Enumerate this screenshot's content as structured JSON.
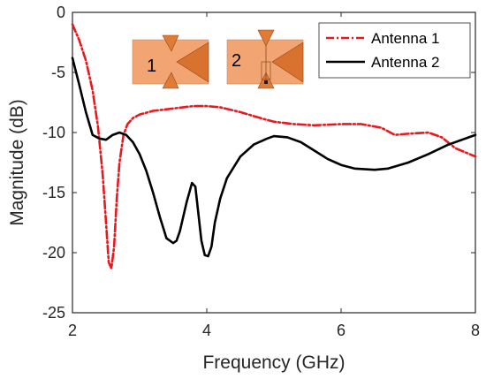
{
  "chart_data": {
    "type": "line",
    "title": "",
    "xlabel": "Frequency (GHz)",
    "ylabel": "Magnitude (dB)",
    "xlim": [
      2,
      8
    ],
    "ylim": [
      -25,
      0
    ],
    "xticks": [
      2,
      4,
      6,
      8
    ],
    "yticks": [
      0,
      -5,
      -10,
      -15,
      -20,
      -25
    ],
    "grid": false,
    "legend_position": "top-right",
    "series": [
      {
        "name": "Antenna 1",
        "color": "#e8191e",
        "style": "dash-dot",
        "x": [
          2.0,
          2.1,
          2.2,
          2.3,
          2.38,
          2.45,
          2.5,
          2.54,
          2.58,
          2.62,
          2.66,
          2.7,
          2.76,
          2.82,
          2.9,
          3.0,
          3.2,
          3.5,
          3.8,
          4.0,
          4.2,
          4.5,
          4.8,
          5.0,
          5.3,
          5.6,
          6.0,
          6.3,
          6.6,
          6.8,
          7.0,
          7.3,
          7.5,
          7.7,
          8.0
        ],
        "y": [
          -1.0,
          -2.3,
          -4.0,
          -6.5,
          -9.5,
          -13.5,
          -17.5,
          -20.8,
          -21.3,
          -19.5,
          -15.5,
          -12.5,
          -10.2,
          -9.3,
          -8.8,
          -8.5,
          -8.2,
          -8.0,
          -7.8,
          -7.8,
          -7.9,
          -8.3,
          -8.8,
          -9.1,
          -9.3,
          -9.4,
          -9.3,
          -9.3,
          -9.6,
          -10.2,
          -10.1,
          -10.0,
          -10.4,
          -11.3,
          -12.0
        ]
      },
      {
        "name": "Antenna 2",
        "color": "#000000",
        "style": "solid",
        "x": [
          2.0,
          2.1,
          2.2,
          2.3,
          2.4,
          2.5,
          2.6,
          2.7,
          2.8,
          2.9,
          3.0,
          3.1,
          3.2,
          3.3,
          3.4,
          3.5,
          3.55,
          3.6,
          3.7,
          3.78,
          3.83,
          3.87,
          3.92,
          3.97,
          4.02,
          4.07,
          4.12,
          4.2,
          4.3,
          4.5,
          4.7,
          4.9,
          5.0,
          5.2,
          5.4,
          5.6,
          5.8,
          6.0,
          6.2,
          6.5,
          6.7,
          7.0,
          7.3,
          7.6,
          8.0
        ],
        "y": [
          -3.8,
          -6.0,
          -8.3,
          -10.2,
          -10.5,
          -10.6,
          -10.2,
          -10.0,
          -10.2,
          -10.8,
          -11.8,
          -13.2,
          -15.0,
          -17.0,
          -18.8,
          -19.2,
          -19.0,
          -18.2,
          -15.8,
          -14.2,
          -14.5,
          -16.5,
          -19.0,
          -20.2,
          -20.3,
          -19.5,
          -17.5,
          -15.5,
          -13.8,
          -12.0,
          -11.0,
          -10.5,
          -10.3,
          -10.4,
          -10.8,
          -11.5,
          -12.2,
          -12.7,
          -13.0,
          -13.1,
          -13.0,
          -12.5,
          -11.8,
          -11.0,
          -10.2
        ]
      }
    ],
    "inset": {
      "labels": [
        "1",
        "2"
      ],
      "colors": {
        "light": "#f2a472",
        "dark": "#d9722e",
        "stroke": "#8a4a1e"
      }
    }
  }
}
